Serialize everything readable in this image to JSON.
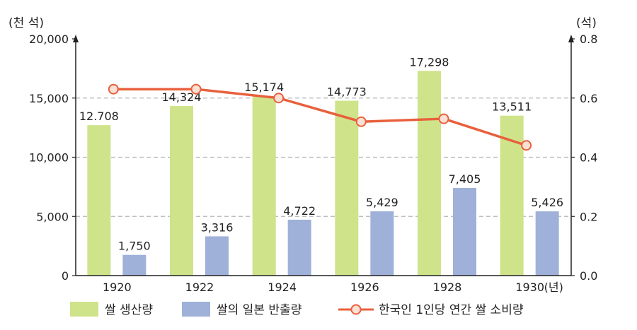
{
  "chart_data": {
    "type": "bar",
    "categories": [
      "1920",
      "1922",
      "1924",
      "1926",
      "1928",
      "1930"
    ],
    "x_unit": "(년)",
    "y_left": {
      "unit": "(천 석)",
      "range": [
        0,
        20000
      ],
      "ticks": [
        "0",
        "5,000",
        "10,000",
        "15,000",
        "20,000"
      ]
    },
    "y_right": {
      "unit": "(석)",
      "range": [
        0,
        0.8
      ],
      "ticks": [
        "0.0",
        "0.2",
        "0.4",
        "0.6",
        "0.8"
      ]
    },
    "grid": "dashed horizontal",
    "series": [
      {
        "name": "쌀 생산량",
        "kind": "bar",
        "axis": "left",
        "color": "#cfe38a",
        "values": [
          12708,
          14324,
          15174,
          14773,
          17298,
          13511
        ],
        "labels": [
          "12.708",
          "14,324",
          "15,174",
          "14,773",
          "17,298",
          "13,511"
        ]
      },
      {
        "name": "쌀의 일본 반출량",
        "kind": "bar",
        "axis": "left",
        "color": "#9fb1d9",
        "values": [
          1750,
          3316,
          4722,
          5429,
          7405,
          5426
        ],
        "labels": [
          "1,750",
          "3,316",
          "4,722",
          "5,429",
          "7,405",
          "5,426"
        ]
      },
      {
        "name": "한국인 1인당 연간 쌀 소비량",
        "kind": "line",
        "axis": "right",
        "color": "#e8603c",
        "values": [
          0.63,
          0.63,
          0.6,
          0.52,
          0.53,
          0.44
        ]
      }
    ],
    "legend_position": "bottom"
  }
}
